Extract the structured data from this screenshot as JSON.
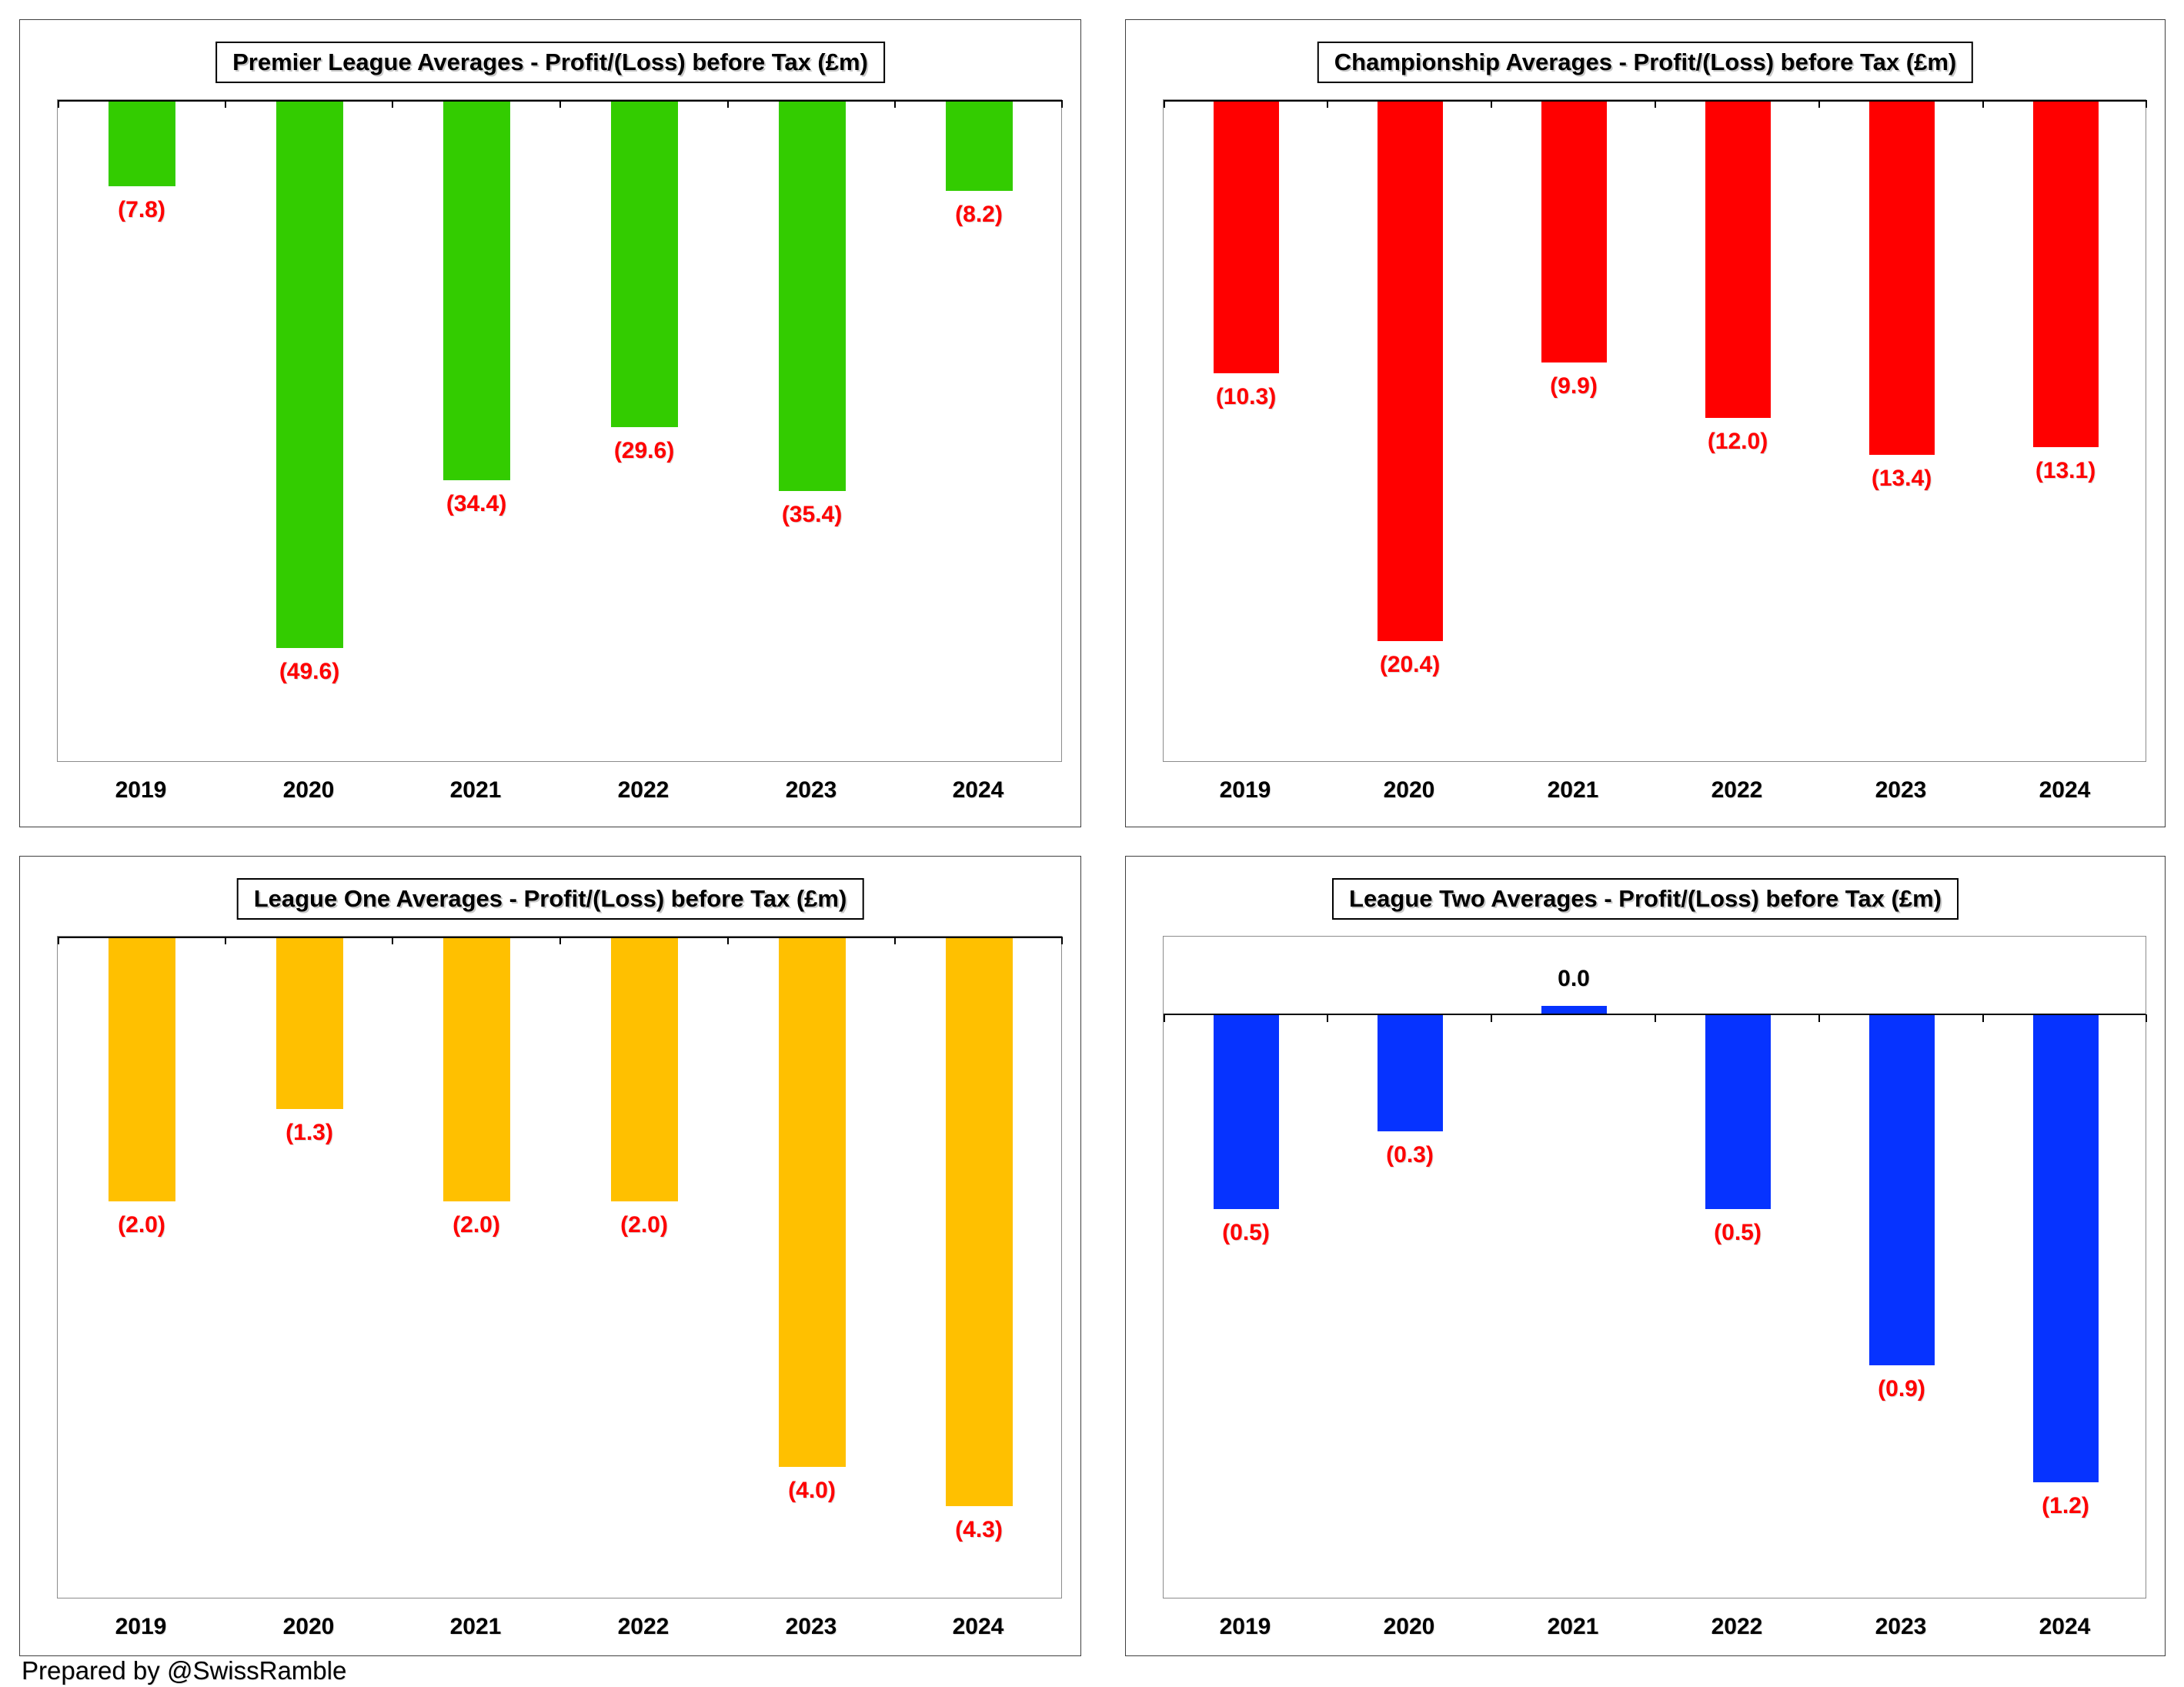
{
  "footer": "Prepared by @SwissRamble",
  "colors": {
    "negative_label": "#FF0000",
    "positive_label": "#000000",
    "axis": "#000000",
    "plot_border": "#8C8C8C",
    "panel_border": "#3F3F3F"
  },
  "chart_data": [
    {
      "type": "bar",
      "title": "Premier League Averages - Profit/(Loss) before Tax (£m)",
      "bar_color": "#33CC00",
      "categories": [
        "2019",
        "2020",
        "2021",
        "2022",
        "2023",
        "2024"
      ],
      "values": [
        -7.8,
        -49.6,
        -34.4,
        -29.6,
        -35.4,
        -8.2
      ],
      "data_labels": [
        "(7.8)",
        "(49.6)",
        "(34.4)",
        "(29.6)",
        "(35.4)",
        "(8.2)"
      ],
      "ylim": [
        -60,
        0
      ],
      "grid": false,
      "legend": false
    },
    {
      "type": "bar",
      "title": "Championship Averages - Profit/(Loss) before Tax (£m)",
      "bar_color": "#FF0000",
      "categories": [
        "2019",
        "2020",
        "2021",
        "2022",
        "2023",
        "2024"
      ],
      "values": [
        -10.3,
        -20.4,
        -9.9,
        -12.0,
        -13.4,
        -13.1
      ],
      "data_labels": [
        "(10.3)",
        "(20.4)",
        "(9.9)",
        "(12.0)",
        "(13.4)",
        "(13.1)"
      ],
      "ylim": [
        -25,
        0
      ],
      "grid": false,
      "legend": false
    },
    {
      "type": "bar",
      "title": "League One Averages - Profit/(Loss) before Tax (£m)",
      "bar_color": "#FFC000",
      "categories": [
        "2019",
        "2020",
        "2021",
        "2022",
        "2023",
        "2024"
      ],
      "values": [
        -2.0,
        -1.3,
        -2.0,
        -2.0,
        -4.0,
        -4.3
      ],
      "data_labels": [
        "(2.0)",
        "(1.3)",
        "(2.0)",
        "(2.0)",
        "(4.0)",
        "(4.3)"
      ],
      "ylim": [
        -5,
        0
      ],
      "grid": false,
      "legend": false
    },
    {
      "type": "bar",
      "title": "League Two Averages - Profit/(Loss) before Tax (£m)",
      "bar_color": "#0633FF",
      "categories": [
        "2019",
        "2020",
        "2021",
        "2022",
        "2023",
        "2024"
      ],
      "values": [
        -0.5,
        -0.3,
        0.0,
        -0.5,
        -0.9,
        -1.2
      ],
      "data_labels": [
        "(0.5)",
        "(0.3)",
        "0.0",
        "(0.5)",
        "(0.9)",
        "(1.2)"
      ],
      "ylim": [
        -1.5,
        0.2
      ],
      "grid": false,
      "legend": false
    }
  ]
}
